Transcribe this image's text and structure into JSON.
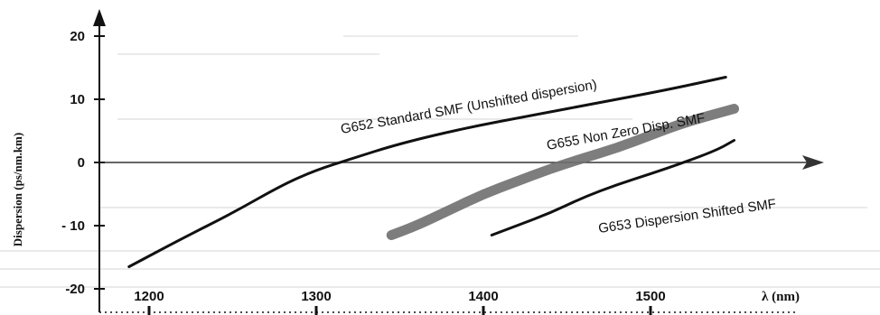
{
  "chart_data": {
    "type": "line",
    "title": "",
    "xlabel": "λ (nm)",
    "ylabel": "Dispersion (ps/nm.km)",
    "xlim": [
      1170,
      1550
    ],
    "ylim": [
      -24,
      24
    ],
    "x_ticks": [
      1200,
      1300,
      1400,
      1500
    ],
    "x_tick_labels": [
      "1200",
      "1300",
      "1400",
      "1500"
    ],
    "y_ticks": [
      20,
      10,
      0,
      -10,
      -20
    ],
    "y_tick_labels": [
      "20",
      "10",
      "0",
      "- 10",
      "-20"
    ],
    "grid": false,
    "legend": "none (series labeled inline)",
    "series": [
      {
        "name": "G652 Standard SMF (Unshifted dispersion)",
        "color": "#111111",
        "style": "solid-thin",
        "x": [
          1188,
          1220,
          1250,
          1280,
          1300,
          1320,
          1350,
          1390,
          1430,
          1470,
          1510,
          1545
        ],
        "y": [
          -16.5,
          -12,
          -8,
          -3.5,
          -1.2,
          0.5,
          3,
          5.5,
          7.5,
          9.5,
          11.5,
          13.5
        ]
      },
      {
        "name": "G655 Non Zero Disp. SMF",
        "color": "#6f6f6f",
        "style": "solid-thick-grey",
        "x": [
          1345,
          1360,
          1380,
          1400,
          1420,
          1440,
          1460,
          1480,
          1500,
          1520,
          1550
        ],
        "y": [
          -11.5,
          -10,
          -7.5,
          -5,
          -3,
          -1,
          0.7,
          2.3,
          4.3,
          6.3,
          8.5
        ]
      },
      {
        "name": "G653 Dispersion Shifted SMF",
        "color": "#111111",
        "style": "solid-thin",
        "x": [
          1405,
          1420,
          1440,
          1460,
          1480,
          1500,
          1520,
          1540,
          1550
        ],
        "y": [
          -11.5,
          -10,
          -8,
          -5.5,
          -3.5,
          -1.8,
          0,
          2,
          3.5
        ]
      }
    ]
  }
}
